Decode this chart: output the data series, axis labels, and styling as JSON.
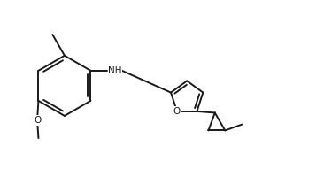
{
  "bg_color": "#ffffff",
  "line_color": "#1a1a1a",
  "line_width": 1.4,
  "dbo": 0.055,
  "font_size": 7.5,
  "figsize": [
    3.57,
    1.91
  ],
  "dpi": 100,
  "xlim": [
    0.0,
    5.2
  ],
  "ylim": [
    0.3,
    2.9
  ]
}
